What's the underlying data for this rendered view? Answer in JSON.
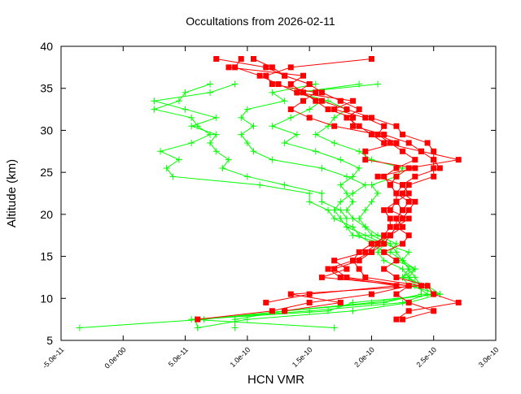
{
  "chart_data": {
    "type": "line",
    "title": "Occultations from 2026-02-11",
    "xlabel": "HCN VMR",
    "ylabel": "Altitude (km)",
    "xlim": [
      -5e-11,
      3e-10
    ],
    "ylim": [
      5,
      40
    ],
    "x_ticks": [
      "-5.0e-11",
      "0.0e+00",
      "5.0e-11",
      "1.0e-10",
      "1.5e-10",
      "2.0e-10",
      "2.5e-10",
      "3.0e-10"
    ],
    "y_ticks": [
      "5",
      "10",
      "15",
      "20",
      "25",
      "30",
      "35",
      "40"
    ],
    "grid": false,
    "colors": {
      "red_squares": "#ff0000",
      "green_plus": "#00ff00"
    },
    "red_altitudes": [
      7.5,
      8.5,
      9.5,
      10.5,
      11.5,
      12.5,
      13.5,
      14.5,
      15.5,
      16.5,
      17.5,
      18.5,
      19.5,
      20.5,
      21.5,
      22.5,
      23.5,
      24.5,
      25.5,
      26.5,
      27.5,
      28.5,
      29.5,
      30.5,
      31.5,
      32.5,
      33.5,
      34.5,
      35.5,
      36.5,
      37.5,
      38.5
    ],
    "green_altitudes": [
      6.5,
      7.5,
      8.5,
      9.5,
      10.5,
      11.5,
      12.5,
      13.5,
      14.5,
      15.5,
      16.5,
      17.5,
      18.5,
      19.5,
      20.5,
      21.5,
      22.5,
      23.5,
      24.5,
      25.5,
      26.5,
      27.5,
      28.5,
      29.5,
      30.5,
      31.5,
      32.5,
      33.5,
      34.5,
      35.5
    ],
    "red_series": [
      [
        6e-11,
        1.2e-10,
        1.5e-10,
        2e-10,
        2.3e-10,
        1.8e-10,
        1.7e-10,
        1.9e-10,
        2e-10,
        2.1e-10,
        2.15e-10,
        2.2e-10,
        2.2e-10,
        2.25e-10,
        2.2e-10,
        2.2e-10,
        2.15e-10,
        2.2e-10,
        2.3e-10,
        2.7e-10,
        2.4e-10,
        2.1e-10,
        2e-10,
        1.9e-10,
        1.8e-10,
        1.9e-10,
        1.75e-10,
        1.6e-10,
        1.5e-10,
        1.3e-10,
        1.2e-10,
        1.05e-10
      ],
      [
        2.2e-10,
        2.3e-10,
        2.7e-10,
        2.5e-10,
        2.45e-10,
        2.2e-10,
        2.1e-10,
        2.2e-10,
        2.1e-10,
        2.25e-10,
        2.3e-10,
        2.2e-10,
        2.25e-10,
        2.3e-10,
        2.35e-10,
        2.25e-10,
        2.3e-10,
        2.5e-10,
        2.5e-10,
        2.5e-10,
        2.5e-10,
        2.45e-10,
        2.25e-10,
        2.2e-10,
        2e-10,
        1.8e-10,
        1.6e-10,
        1.4e-10,
        1.25e-10,
        1.1e-10,
        9e-11,
        9.5e-11
      ],
      [
        null,
        1.3e-10,
        1.75e-10,
        1.35e-10,
        2.4e-10,
        1.95e-10,
        1.9e-10,
        1.85e-10,
        2e-10,
        2.05e-10,
        2.15e-10,
        2.25e-10,
        2.2e-10,
        2.25e-10,
        2.3e-10,
        2.2e-10,
        2.15e-10,
        2.1e-10,
        2.2e-10,
        2.35e-10,
        2.25e-10,
        2.15e-10,
        2.05e-10,
        1.7e-10,
        1.5e-10,
        1.35e-10,
        1.45e-10,
        1.55e-10,
        1.2e-10,
        1.15e-10,
        1.35e-10,
        2e-10
      ],
      [
        2.25e-10,
        2.5e-10,
        2.3e-10,
        2.2e-10,
        2.3e-10,
        1.6e-10,
        1.8e-10,
        1.7e-10,
        1.95e-10,
        2.05e-10,
        2.1e-10,
        2.15e-10,
        2.15e-10,
        2.1e-10,
        2.2e-10,
        2.2e-10,
        2.25e-10,
        2.05e-10,
        2.35e-10,
        1.95e-10,
        1.95e-10,
        2.2e-10,
        2.05e-10,
        2.1e-10,
        1.95e-10,
        1.7e-10,
        1.85e-10,
        1.4e-10,
        1.5e-10,
        1.3e-10,
        1.15e-10,
        7.5e-11
      ],
      [
        null,
        null,
        1.15e-10,
        1.5e-10,
        2.2e-10,
        1.75e-10,
        1.65e-10,
        1.85e-10,
        1.9e-10,
        2e-10,
        2.15e-10,
        2.2e-10,
        2.3e-10,
        2.15e-10,
        2.2e-10,
        2.3e-10,
        2.25e-10,
        2.35e-10,
        2.55e-10,
        2.5e-10,
        2.4e-10,
        2.3e-10,
        2.1e-10,
        1.85e-10,
        1.85e-10,
        1.65e-10,
        1.55e-10,
        1.45e-10,
        1.35e-10,
        1.45e-10,
        8.5e-11,
        null
      ]
    ],
    "green_series": [
      [
        -3.5e-11,
        6.5e-11,
        1.3e-10,
        2e-10,
        2.5e-10,
        2.4e-10,
        2.3e-10,
        2.35e-10,
        2.2e-10,
        2.1e-10,
        2e-10,
        1.9e-10,
        1.85e-10,
        1.7e-10,
        1.65e-10,
        1.5e-10,
        1.5e-10,
        1.1e-10,
        4e-11,
        3.5e-11,
        4.5e-11,
        3e-11,
        5.5e-11,
        7e-11,
        6e-11,
        5.5e-11,
        2.5e-11,
        4.5e-11,
        5e-11,
        7e-11
      ],
      [
        6e-11,
        5.8e-11,
        1.65e-10,
        1.85e-10,
        2.55e-10,
        2.3e-10,
        2.25e-10,
        2.35e-10,
        2.25e-10,
        2.3e-10,
        2.1e-10,
        1.95e-10,
        1.8e-10,
        1.8e-10,
        1.75e-10,
        1.6e-10,
        1.6e-10,
        1.3e-10,
        1e-10,
        8e-11,
        8.5e-11,
        7.5e-11,
        7e-11,
        7.5e-11,
        5.5e-11,
        7.5e-11,
        5e-11,
        2.5e-11,
        7e-11,
        9e-11
      ],
      [
        1.7e-10,
        5.5e-11,
        1.5e-10,
        2.25e-10,
        2.45e-10,
        2.35e-10,
        2.3e-10,
        2.25e-10,
        2.1e-10,
        2.05e-10,
        2.1e-10,
        1.85e-10,
        1.8e-10,
        1.75e-10,
        1.7e-10,
        1.75e-10,
        1.85e-10,
        1.95e-10,
        1.8e-10,
        1.6e-10,
        1.2e-10,
        1.05e-10,
        1e-10,
        9.5e-11,
        1.05e-10,
        9.5e-11,
        1e-10,
        1.3e-10,
        1.2e-10,
        1.55e-10
      ],
      [
        9e-11,
        9e-11,
        1.3e-10,
        2.1e-10,
        2.4e-10,
        2.4e-10,
        2.35e-10,
        2.3e-10,
        2.25e-10,
        2.15e-10,
        2.2e-10,
        2.05e-10,
        1.95e-10,
        1.85e-10,
        1.8e-10,
        1.85e-10,
        1.8e-10,
        1.75e-10,
        1.85e-10,
        1.9e-10,
        1.75e-10,
        1.55e-10,
        1.3e-10,
        1.4e-10,
        1.2e-10,
        1.35e-10,
        1.5e-10,
        1.6e-10,
        1.4e-10,
        1.9e-10
      ],
      [
        6e-11,
        1e-10,
        1.85e-10,
        2.3e-10,
        2.55e-10,
        2.45e-10,
        2.25e-10,
        2.3e-10,
        2.25e-10,
        2.2e-10,
        2.15e-10,
        2e-10,
        1.95e-10,
        1.9e-10,
        1.95e-10,
        2e-10,
        2.05e-10,
        2e-10,
        2.2e-10,
        2.25e-10,
        2e-10,
        1.9e-10,
        1.7e-10,
        1.55e-10,
        1.65e-10,
        1.7e-10,
        1.8e-10,
        1.65e-10,
        1.4e-10,
        2.05e-10
      ]
    ]
  }
}
